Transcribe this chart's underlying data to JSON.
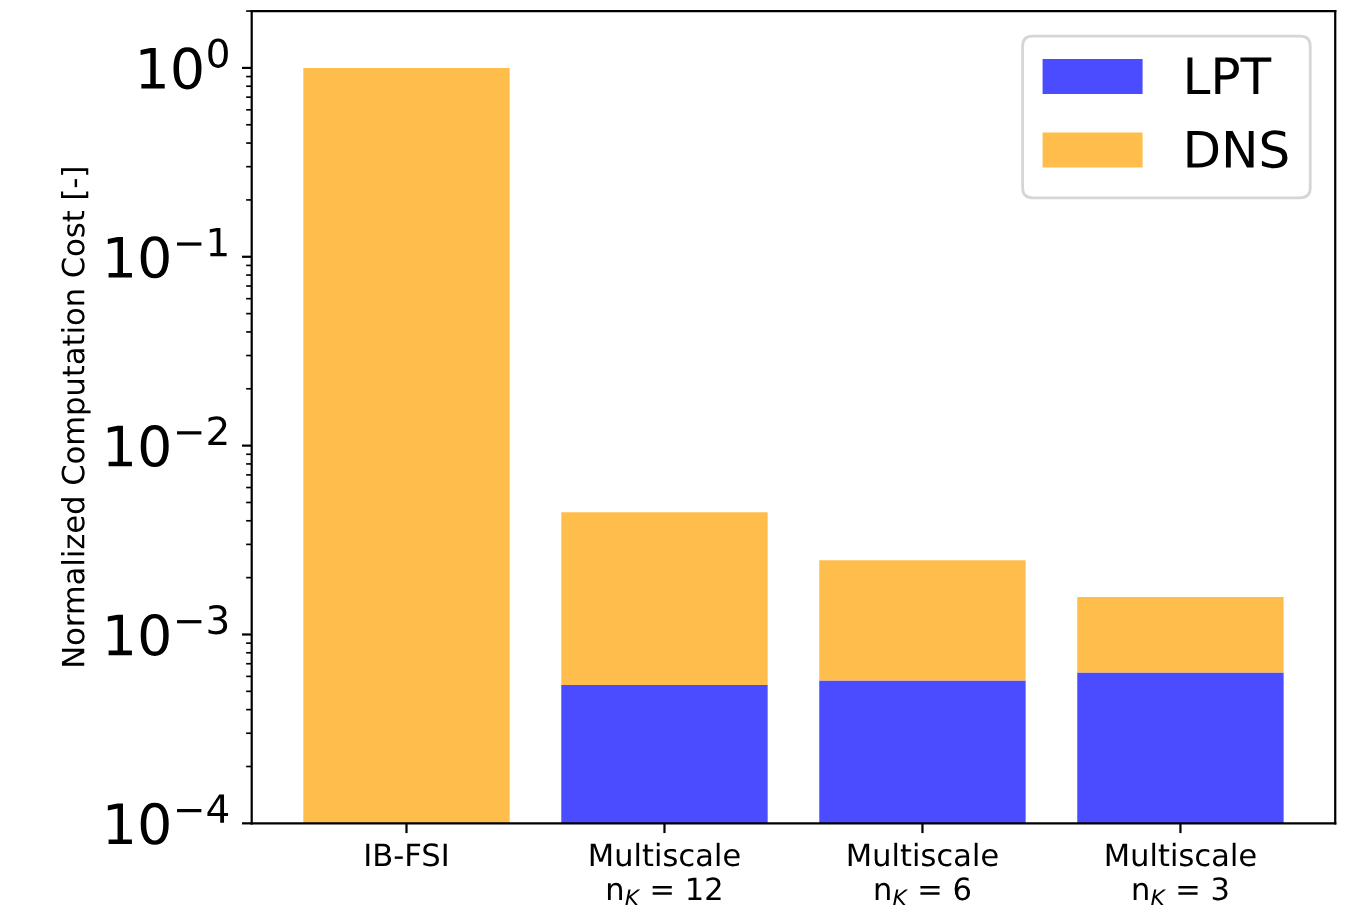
{
  "chart_data": {
    "type": "bar",
    "stacked": true,
    "ylabel": "Normalized Computation Cost [-]",
    "categories": [
      "IB-FSI",
      "Multiscale\nn$_{K}$ = 12",
      "Multiscale\nn$_{K}$ = 6",
      "Multiscale\nn$_{K}$ = 3"
    ],
    "series": [
      {
        "name": "LPT",
        "color": "#4b4bff",
        "values": [
          null,
          0.00054,
          0.00057,
          0.00063
        ]
      },
      {
        "name": "DNS",
        "color": "#ffbe4b",
        "values": [
          1.0,
          0.0039,
          0.0019,
          0.00095
        ]
      }
    ],
    "log": "y",
    "ylim": [
      0.0001,
      2.0
    ],
    "yticks": [
      {
        "value": 0.0001,
        "label": "10$^{−4}$"
      },
      {
        "value": 0.001,
        "label": "10$^{−3}$"
      },
      {
        "value": 0.01,
        "label": "10$^{−2}$"
      },
      {
        "value": 0.1,
        "label": "10$^{−1}$"
      },
      {
        "value": 1,
        "label": "10$^{0}$"
      }
    ],
    "grid": false,
    "legend": "top right"
  }
}
